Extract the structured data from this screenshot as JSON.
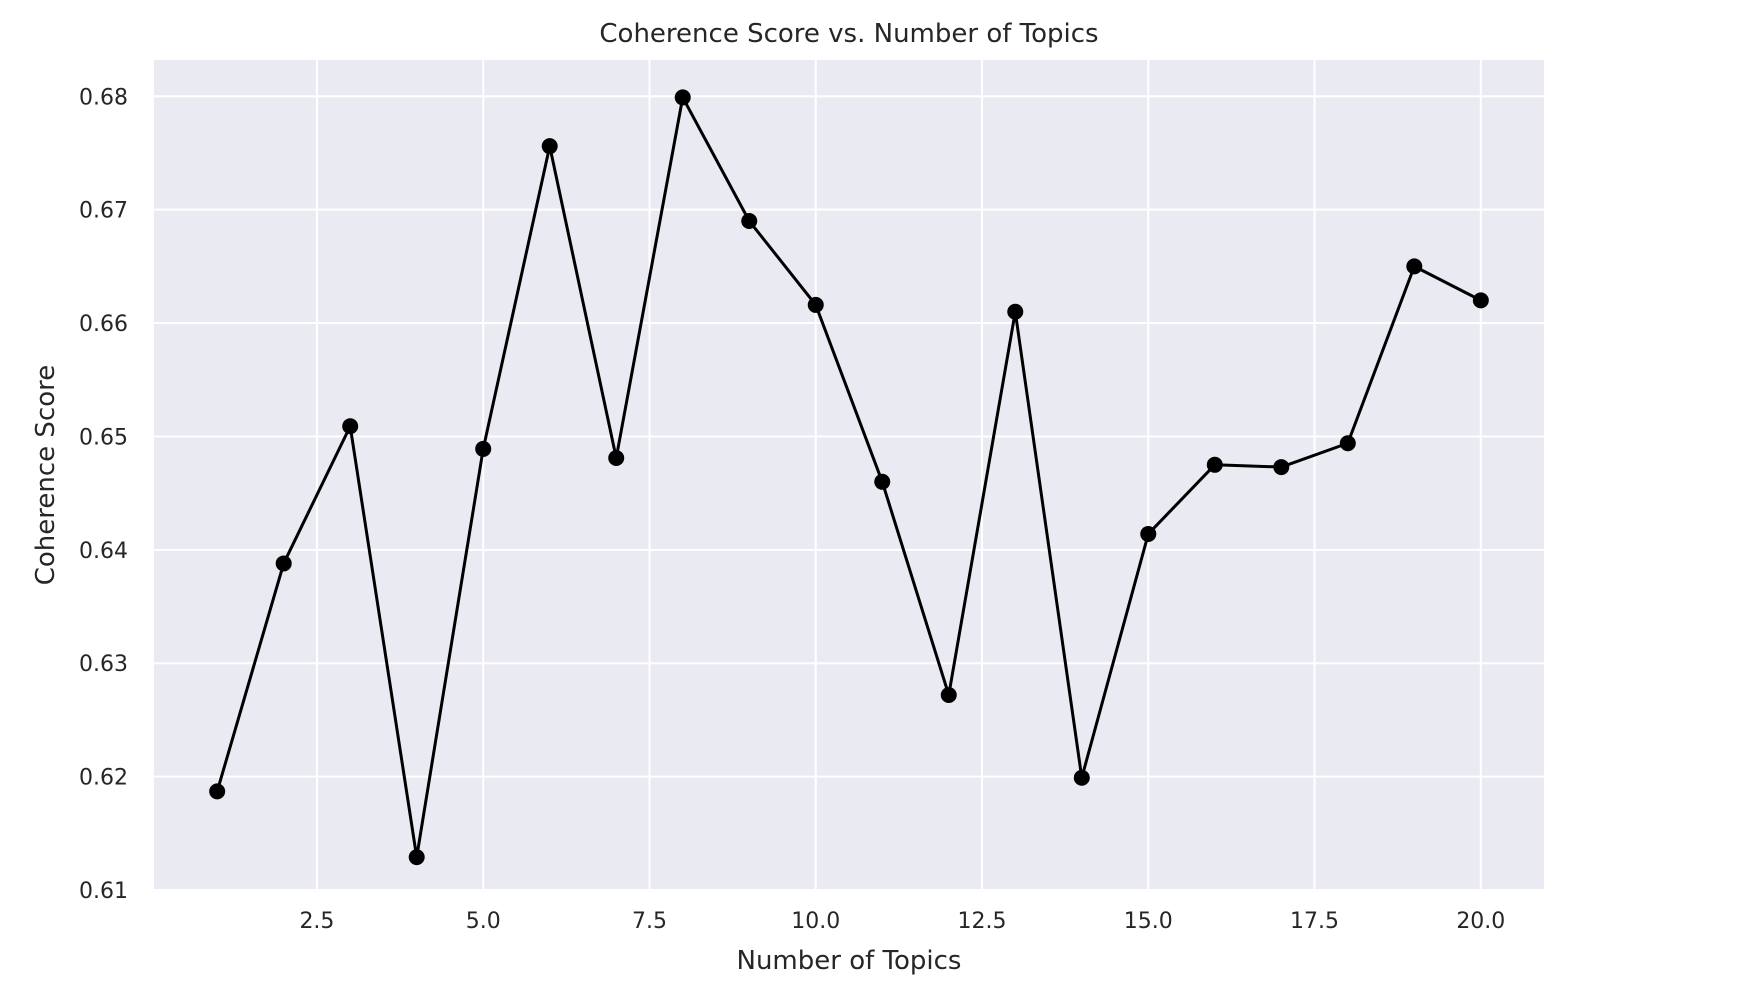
{
  "chart_data": {
    "type": "line",
    "title": "Coherence Score vs. Number of Topics",
    "xlabel": "Number of Topics",
    "ylabel": "Coherence Score",
    "xlim": [
      0.05,
      20.95
    ],
    "ylim": [
      0.61,
      0.6832
    ],
    "xticks": [
      2.5,
      5.0,
      7.5,
      10.0,
      12.5,
      15.0,
      17.5,
      20.0
    ],
    "xtick_labels": [
      "2.5",
      "5.0",
      "7.5",
      "10.0",
      "12.5",
      "15.0",
      "17.5",
      "20.0"
    ],
    "yticks": [
      0.61,
      0.62,
      0.63,
      0.64,
      0.65,
      0.66,
      0.67,
      0.68
    ],
    "ytick_labels": [
      "0.61",
      "0.62",
      "0.63",
      "0.64",
      "0.65",
      "0.66",
      "0.67",
      "0.68"
    ],
    "grid": true,
    "background": "#eaeaf2",
    "grid_color": "#ffffff",
    "line_color": "#000000",
    "marker": "circle",
    "x": [
      1,
      2,
      3,
      4,
      5,
      6,
      7,
      8,
      9,
      10,
      11,
      12,
      13,
      14,
      15,
      16,
      17,
      18,
      19,
      20
    ],
    "y": [
      0.6187,
      0.6388,
      0.6509,
      0.6129,
      0.6489,
      0.6756,
      0.6481,
      0.6799,
      0.669,
      0.6616,
      0.646,
      0.6272,
      0.661,
      0.6199,
      0.6414,
      0.6475,
      0.6473,
      0.6494,
      0.665,
      0.662
    ]
  }
}
